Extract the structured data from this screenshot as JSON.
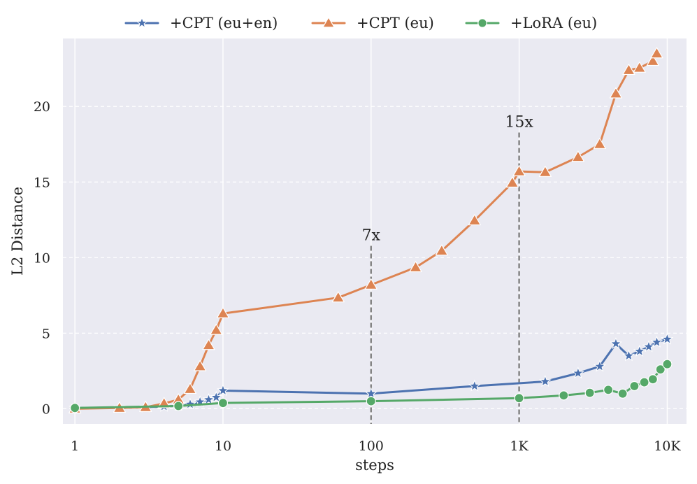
{
  "chart_data": {
    "type": "line",
    "title": "",
    "xlabel": "steps",
    "ylabel": "L2 Distance",
    "xscale": "log",
    "xlim": [
      0.83,
      13500
    ],
    "ylim": [
      -1.0,
      24.5
    ],
    "xticks": [
      {
        "value": 1,
        "label": "1"
      },
      {
        "value": 10,
        "label": "10"
      },
      {
        "value": 100,
        "label": "100"
      },
      {
        "value": 1000,
        "label": "1K"
      },
      {
        "value": 10000,
        "label": "10K"
      }
    ],
    "yticks": [
      {
        "value": 0,
        "label": "0"
      },
      {
        "value": 5,
        "label": "5"
      },
      {
        "value": 10,
        "label": "10"
      },
      {
        "value": 15,
        "label": "15"
      },
      {
        "value": 20,
        "label": "20"
      }
    ],
    "grid": true,
    "legend_position": "top-center",
    "series": [
      {
        "name": "+CPT (eu+en)",
        "color": "#4c72b0",
        "marker": "star",
        "points": [
          [
            1,
            0.05
          ],
          [
            2,
            0.08
          ],
          [
            3,
            0.1
          ],
          [
            4,
            0.15
          ],
          [
            5,
            0.2
          ],
          [
            6,
            0.3
          ],
          [
            7,
            0.45
          ],
          [
            8,
            0.6
          ],
          [
            9,
            0.75
          ],
          [
            10,
            1.2
          ],
          [
            100,
            1.0
          ],
          [
            500,
            1.5
          ],
          [
            1500,
            1.8
          ],
          [
            2500,
            2.35
          ],
          [
            3500,
            2.8
          ],
          [
            4500,
            4.3
          ],
          [
            5500,
            3.5
          ],
          [
            6500,
            3.8
          ],
          [
            7500,
            4.1
          ],
          [
            8500,
            4.4
          ],
          [
            10000,
            4.6
          ]
        ]
      },
      {
        "name": "+CPT (eu)",
        "color": "#dd8452",
        "marker": "triangle",
        "points": [
          [
            1,
            0.0
          ],
          [
            2,
            0.05
          ],
          [
            3,
            0.1
          ],
          [
            4,
            0.35
          ],
          [
            5,
            0.6
          ],
          [
            6,
            1.3
          ],
          [
            7,
            2.8
          ],
          [
            8,
            4.2
          ],
          [
            9,
            5.2
          ],
          [
            10,
            6.3
          ],
          [
            60,
            7.35
          ],
          [
            100,
            8.2
          ],
          [
            200,
            9.35
          ],
          [
            300,
            10.45
          ],
          [
            500,
            12.45
          ],
          [
            900,
            14.95
          ],
          [
            1000,
            15.7
          ],
          [
            1500,
            15.65
          ],
          [
            2500,
            16.65
          ],
          [
            3500,
            17.5
          ],
          [
            4500,
            20.85
          ],
          [
            5500,
            22.4
          ],
          [
            6500,
            22.55
          ],
          [
            8000,
            23.0
          ],
          [
            8500,
            23.5
          ]
        ]
      },
      {
        "name": "+LoRA (eu)",
        "color": "#55a868",
        "marker": "circle",
        "points": [
          [
            1,
            0.05
          ],
          [
            5,
            0.18
          ],
          [
            10,
            0.38
          ],
          [
            100,
            0.5
          ],
          [
            1000,
            0.7
          ],
          [
            2000,
            0.88
          ],
          [
            3000,
            1.05
          ],
          [
            4000,
            1.25
          ],
          [
            5000,
            1.0
          ],
          [
            6000,
            1.5
          ],
          [
            7000,
            1.75
          ],
          [
            8000,
            1.95
          ],
          [
            9000,
            2.6
          ],
          [
            10000,
            2.95
          ]
        ]
      }
    ],
    "annotations": [
      {
        "text": "7x",
        "x": 100,
        "y_top": 10.5,
        "y_bottom": 8.2
      },
      {
        "text": "15x",
        "x": 1000,
        "y_top": 18.0,
        "y_bottom": 15.7
      }
    ]
  }
}
